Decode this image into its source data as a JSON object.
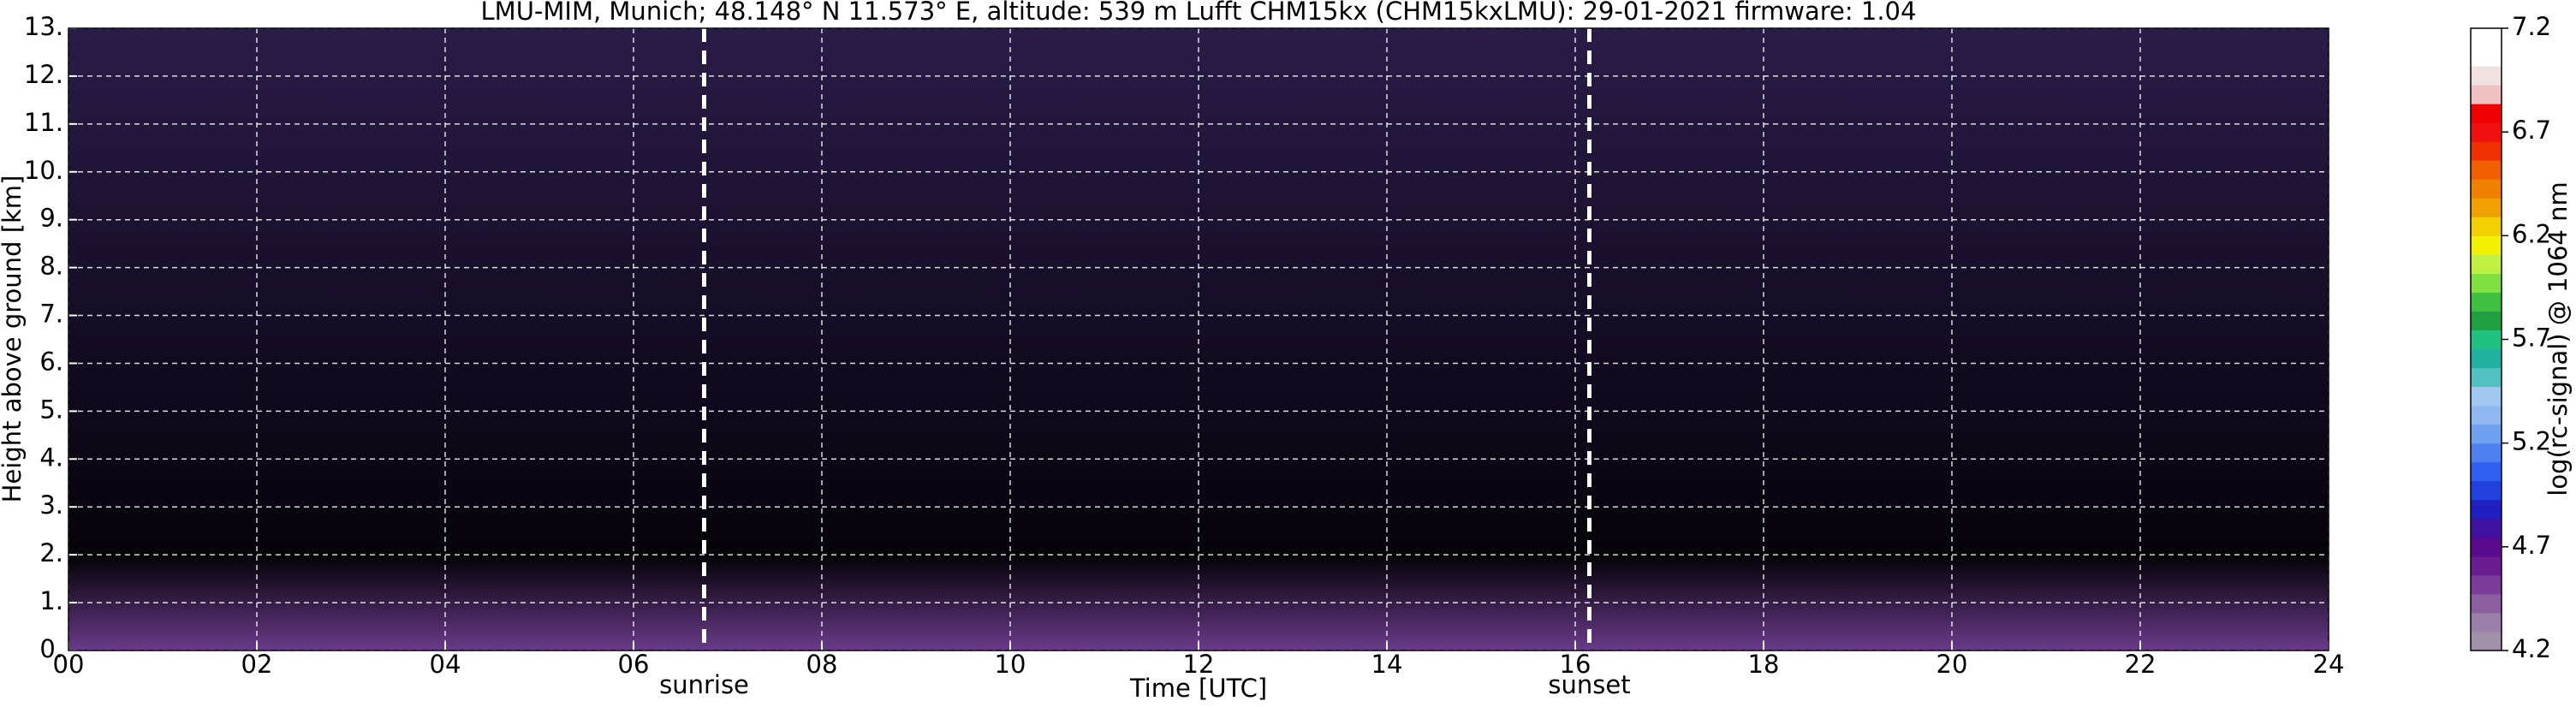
{
  "chart_data": {
    "type": "heatmap",
    "title": "LMU-MIM, Munich; 48.148° N 11.573° E, altitude: 539 m    Lufft CHM15kx (CHM15kxLMU): 29-01-2021    firmware: 1.04",
    "x_label": "Time [UTC]",
    "y_label": "Height above ground [km]",
    "xlim": [
      0,
      24
    ],
    "xticks": [
      {
        "value": 0,
        "label": "00"
      },
      {
        "value": 2,
        "label": "02"
      },
      {
        "value": 4,
        "label": "04"
      },
      {
        "value": 6,
        "label": "06"
      },
      {
        "value": 8,
        "label": "08"
      },
      10,
      12,
      14,
      16,
      18,
      20,
      22,
      24
    ],
    "ylim": [
      0,
      13
    ],
    "yticks": [
      {
        "value": 0,
        "label": "0."
      },
      {
        "value": 1,
        "label": "1."
      },
      {
        "value": 2,
        "label": "2."
      },
      {
        "value": 3,
        "label": "3."
      },
      {
        "value": 4,
        "label": "4."
      },
      {
        "value": 5,
        "label": "5."
      },
      {
        "value": 6,
        "label": "6."
      },
      {
        "value": 7,
        "label": "7."
      },
      {
        "value": 8,
        "label": "8."
      },
      {
        "value": 9,
        "label": "9."
      },
      {
        "value": 10,
        "label": "10."
      },
      {
        "value": 11,
        "label": "11."
      },
      {
        "value": 12,
        "label": "12."
      },
      {
        "value": 13,
        "label": "13."
      }
    ],
    "grid": true,
    "annotations": [
      {
        "text": "sunrise",
        "x": 6.75
      },
      {
        "text": "sunset",
        "x": 16.15
      }
    ],
    "colorbar": {
      "label": "log(rc-signal) @ 1064 nm",
      "lim": [
        4.2,
        7.2
      ],
      "ticks": [
        4.2,
        4.7,
        5.2,
        5.7,
        6.2,
        6.7,
        7.2
      ],
      "colors": [
        "#a090a8",
        "#9a80a8",
        "#8c60a0",
        "#7a3c98",
        "#6a1c90",
        "#5a0a8c",
        "#4010a0",
        "#2020c0",
        "#2040e0",
        "#3060f0",
        "#5080f0",
        "#70a0f0",
        "#90b8f0",
        "#a0c8f0",
        "#50c0c0",
        "#20b0a0",
        "#20c080",
        "#20a040",
        "#40c040",
        "#80e040",
        "#c0f040",
        "#f0f000",
        "#f0d000",
        "#f0a000",
        "#f08000",
        "#f06000",
        "#f03000",
        "#f01010",
        "#f00000",
        "#f0c0c0",
        "#f0e0e0",
        "#ffffff",
        "#ffffff"
      ]
    }
  }
}
